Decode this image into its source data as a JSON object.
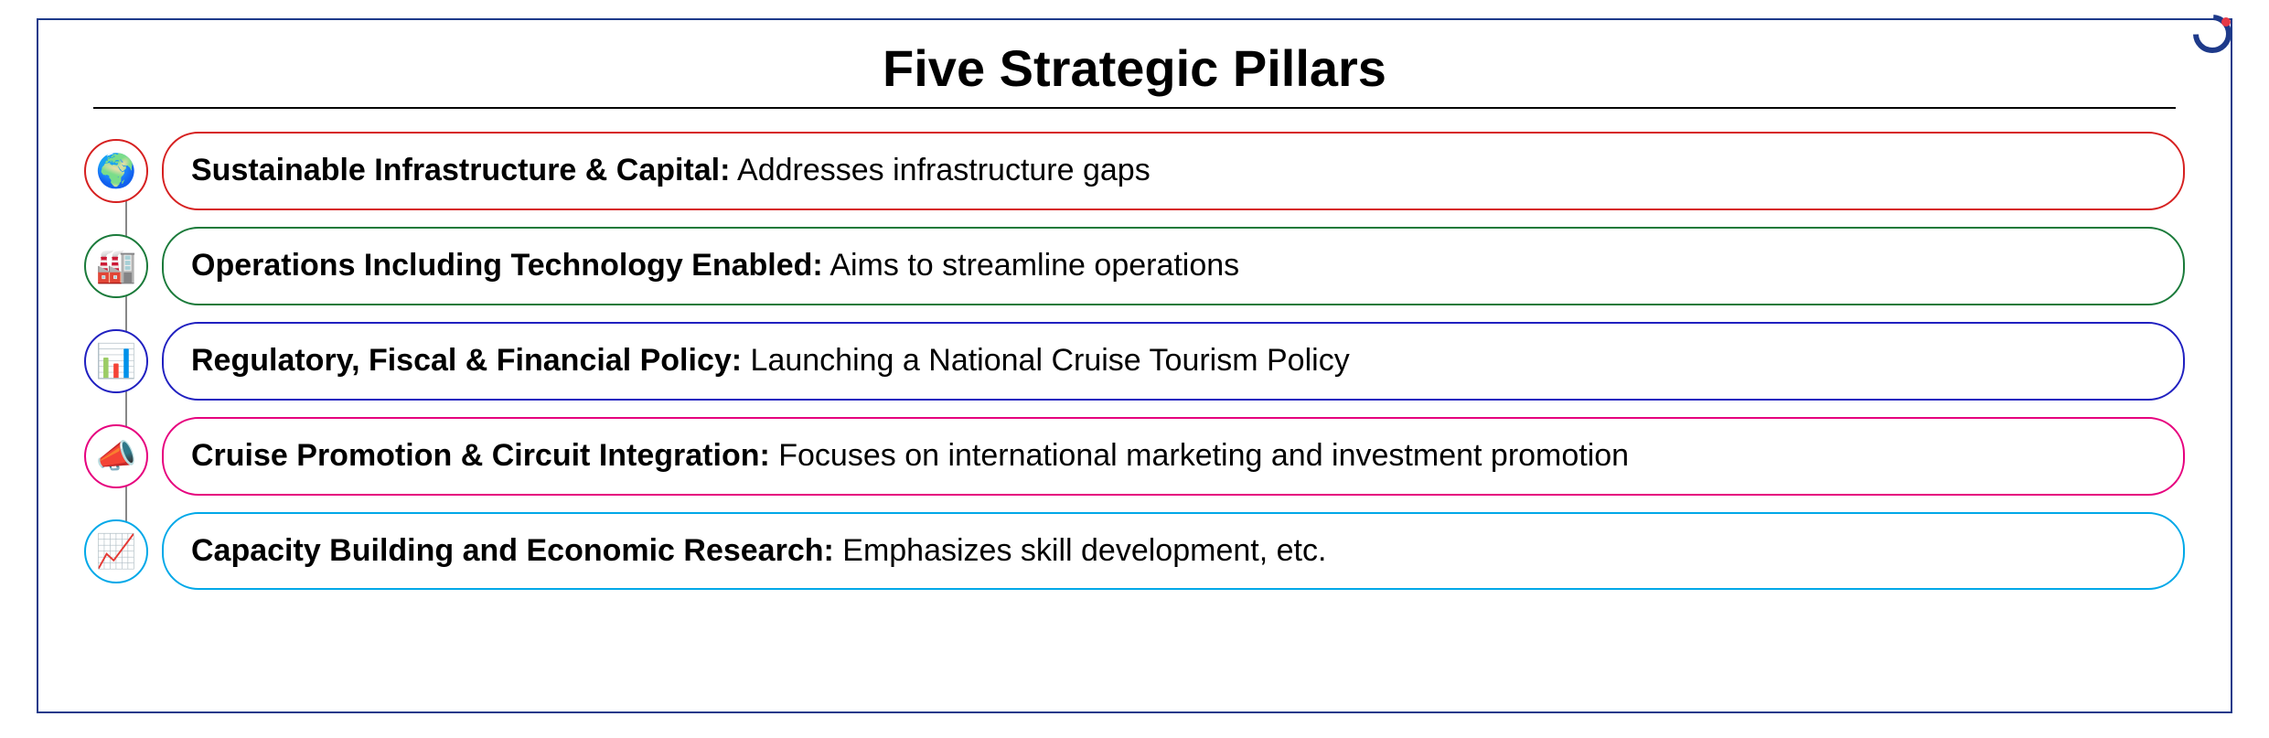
{
  "title": "Five Strategic Pillars",
  "outer_border_color": "#1e3a8a",
  "background_color": "#ffffff",
  "title_fontsize": 56,
  "title_color": "#000000",
  "pillar_fontsize": 34,
  "icon_circle_diameter": 70,
  "pillars": [
    {
      "label": "Sustainable Infrastructure & Capital:",
      "desc": " Addresses infrastructure gaps",
      "color": "#d62020",
      "icon": "🌍",
      "icon_name": "globe-leaf-icon"
    },
    {
      "label": "Operations Including Technology Enabled:",
      "desc": " Aims to streamline operations",
      "color": "#1a7a3a",
      "icon": "🏭",
      "icon_name": "factory-tech-icon"
    },
    {
      "label": "Regulatory, Fiscal & Financial Policy:",
      "desc": "  Launching a National Cruise Tourism Policy",
      "color": "#2020c0",
      "icon": "📊",
      "icon_name": "policy-chart-icon"
    },
    {
      "label": "Cruise Promotion & Circuit Integration:",
      "desc": " Focuses on international marketing and investment promotion",
      "color": "#e6007e",
      "icon": "📣",
      "icon_name": "megaphone-icon"
    },
    {
      "label": "Capacity Building and Economic Research:",
      "desc": " Emphasizes skill development, etc.",
      "color": "#00a8e8",
      "icon": "📈",
      "icon_name": "growth-chart-icon"
    }
  ],
  "logo": {
    "primary_color": "#1e3a8a",
    "accent_color": "#e63946"
  }
}
